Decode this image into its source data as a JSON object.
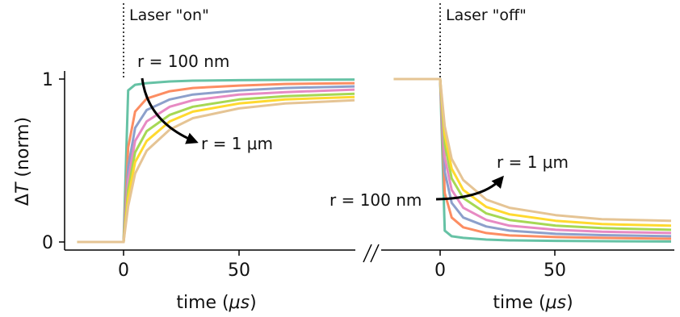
{
  "chart_data": [
    {
      "type": "line",
      "panel": "heating",
      "xlabel_prefix": "time (",
      "xlabel_unit": "μs",
      "xlabel_suffix": ")",
      "ylabel_prefix": "Δ",
      "ylabel_var": "T",
      "ylabel_suffix": " (norm)",
      "xlim": [
        -20,
        100
      ],
      "ylim": [
        0,
        1
      ],
      "xticks": [
        0,
        50
      ],
      "yticks": [
        0,
        1
      ],
      "marker_x": 0,
      "marker_label": "Laser \"on\"",
      "annotation_start": "r = 100 nm",
      "annotation_end": "r = 1 μm",
      "x": [
        -20,
        0,
        2,
        5,
        10,
        20,
        30,
        50,
        70,
        100
      ],
      "series": [
        {
          "color": "#66c2a5",
          "values": [
            0,
            0,
            0.93,
            0.965,
            0.975,
            0.985,
            0.99,
            0.993,
            0.995,
            0.997
          ]
        },
        {
          "color": "#fc8d62",
          "values": [
            0,
            0,
            0.58,
            0.8,
            0.88,
            0.925,
            0.945,
            0.96,
            0.97,
            0.975
          ]
        },
        {
          "color": "#8da0cb",
          "values": [
            0,
            0,
            0.46,
            0.7,
            0.81,
            0.875,
            0.905,
            0.93,
            0.945,
            0.955
          ]
        },
        {
          "color": "#e78ac3",
          "values": [
            0,
            0,
            0.38,
            0.62,
            0.74,
            0.83,
            0.87,
            0.905,
            0.92,
            0.935
          ]
        },
        {
          "color": "#a6d854",
          "values": [
            0,
            0,
            0.32,
            0.55,
            0.68,
            0.78,
            0.83,
            0.875,
            0.895,
            0.91
          ]
        },
        {
          "color": "#ffd92f",
          "values": [
            0,
            0,
            0.27,
            0.49,
            0.62,
            0.74,
            0.8,
            0.85,
            0.875,
            0.89
          ]
        },
        {
          "color": "#e5c494",
          "values": [
            0,
            0,
            0.22,
            0.42,
            0.56,
            0.69,
            0.76,
            0.82,
            0.85,
            0.87
          ]
        }
      ]
    },
    {
      "type": "line",
      "panel": "cooling",
      "xlabel_prefix": "time (",
      "xlabel_unit": "μs",
      "xlabel_suffix": ")",
      "xlim": [
        -20,
        100
      ],
      "ylim": [
        0,
        1
      ],
      "xticks": [
        0,
        50
      ],
      "marker_x": 0,
      "marker_label": "Laser \"off\"",
      "annotation_start": "r = 100 nm",
      "annotation_end": "r = 1 μm",
      "x": [
        -20,
        0,
        2,
        5,
        10,
        20,
        30,
        50,
        70,
        100
      ],
      "series": [
        {
          "color": "#66c2a5",
          "values": [
            1,
            1,
            0.07,
            0.035,
            0.025,
            0.015,
            0.01,
            0.007,
            0.005,
            0.003
          ]
        },
        {
          "color": "#fc8d62",
          "values": [
            1,
            1,
            0.3,
            0.15,
            0.09,
            0.055,
            0.04,
            0.03,
            0.025,
            0.02
          ]
        },
        {
          "color": "#8da0cb",
          "values": [
            1,
            1,
            0.43,
            0.24,
            0.15,
            0.095,
            0.07,
            0.05,
            0.042,
            0.035
          ]
        },
        {
          "color": "#e78ac3",
          "values": [
            1,
            1,
            0.52,
            0.32,
            0.21,
            0.135,
            0.1,
            0.075,
            0.063,
            0.055
          ]
        },
        {
          "color": "#a6d854",
          "values": [
            1,
            1,
            0.6,
            0.39,
            0.27,
            0.175,
            0.135,
            0.1,
            0.085,
            0.075
          ]
        },
        {
          "color": "#ffd92f",
          "values": [
            1,
            1,
            0.66,
            0.45,
            0.32,
            0.215,
            0.17,
            0.13,
            0.11,
            0.1
          ]
        },
        {
          "color": "#e5c494",
          "values": [
            1,
            1,
            0.71,
            0.51,
            0.38,
            0.26,
            0.21,
            0.165,
            0.14,
            0.13
          ]
        }
      ]
    }
  ]
}
